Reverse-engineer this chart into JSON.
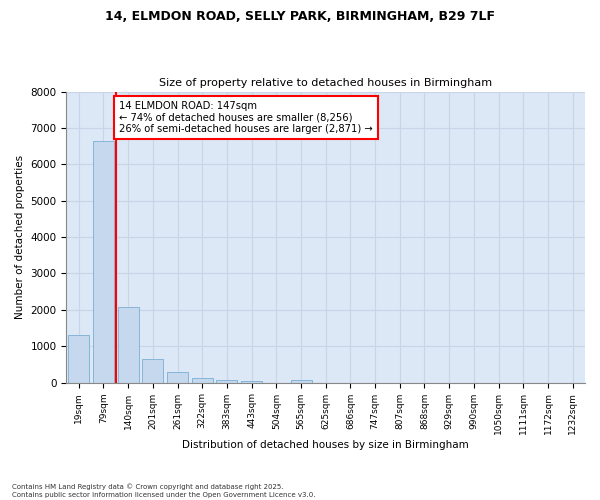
{
  "title_line1": "14, ELMDON ROAD, SELLY PARK, BIRMINGHAM, B29 7LF",
  "title_line2": "Size of property relative to detached houses in Birmingham",
  "xlabel": "Distribution of detached houses by size in Birmingham",
  "ylabel": "Number of detached properties",
  "categories": [
    "19sqm",
    "79sqm",
    "140sqm",
    "201sqm",
    "261sqm",
    "322sqm",
    "383sqm",
    "443sqm",
    "504sqm",
    "565sqm",
    "625sqm",
    "686sqm",
    "747sqm",
    "807sqm",
    "868sqm",
    "929sqm",
    "990sqm",
    "1050sqm",
    "1111sqm",
    "1172sqm",
    "1232sqm"
  ],
  "values": [
    1310,
    6650,
    2090,
    640,
    305,
    130,
    80,
    40,
    0,
    60,
    0,
    0,
    0,
    0,
    0,
    0,
    0,
    0,
    0,
    0,
    0
  ],
  "bar_color": "#c5d8ed",
  "bar_edgecolor": "#7bafd4",
  "grid_color": "#c8d4e8",
  "vline_color": "red",
  "annotation_text": "14 ELMDON ROAD: 147sqm\n← 74% of detached houses are smaller (8,256)\n26% of semi-detached houses are larger (2,871) →",
  "ylim": [
    0,
    8000
  ],
  "footnote": "Contains HM Land Registry data © Crown copyright and database right 2025.\nContains public sector information licensed under the Open Government Licence v3.0.",
  "bg_color": "#ffffff",
  "plot_bg_color": "#dce8f5"
}
